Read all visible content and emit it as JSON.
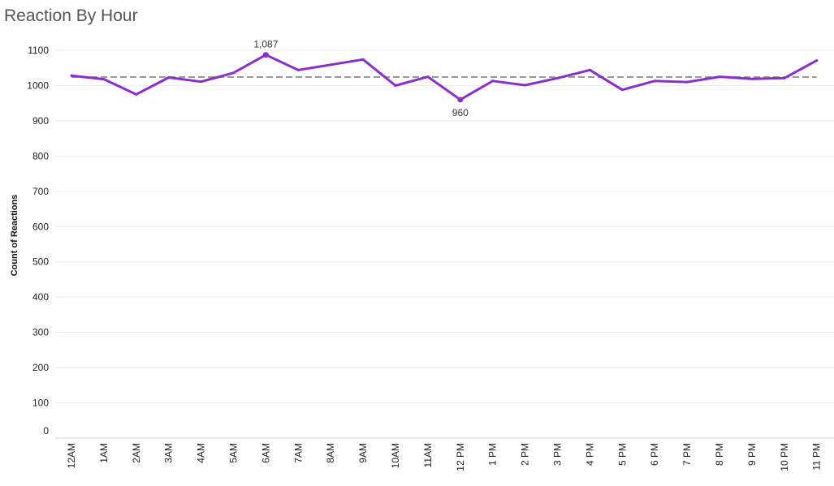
{
  "title": "Reaction By Hour",
  "chart_data": {
    "type": "line",
    "title": "Reaction By Hour",
    "xlabel": "",
    "ylabel": "Count of Reactions",
    "ylim": [
      0,
      1100
    ],
    "yticks": [
      0,
      100,
      200,
      300,
      400,
      500,
      600,
      700,
      800,
      900,
      1000,
      1100
    ],
    "grid": true,
    "categories": [
      "12AM",
      "1AM",
      "2AM",
      "3AM",
      "4AM",
      "5AM",
      "6AM",
      "7AM",
      "8AM",
      "9AM",
      "10AM",
      "11AM",
      "12 PM",
      "1 PM",
      "2 PM",
      "3 PM",
      "4 PM",
      "5 PM",
      "6 PM",
      "7 PM",
      "8 PM",
      "9 PM",
      "10 PM",
      "11 PM"
    ],
    "series": [
      {
        "values": [
          1028,
          1018,
          975,
          1023,
          1011,
          1036,
          1087,
          1044,
          1059,
          1074,
          1000,
          1025,
          960,
          1013,
          1001,
          1021,
          1044,
          988,
          1013,
          1010,
          1025,
          1019,
          1021,
          1071
        ]
      }
    ],
    "reference_line": {
      "value": 1024,
      "style": "dashed"
    },
    "annotations": [
      {
        "category": "6AM",
        "value": 1087,
        "text": "1,087",
        "position": "above"
      },
      {
        "category": "12 PM",
        "value": 960,
        "text": "960",
        "position": "below"
      }
    ],
    "colors": {
      "line": "#8a2fc9",
      "reference": "#999999",
      "grid": "#ececec"
    }
  }
}
